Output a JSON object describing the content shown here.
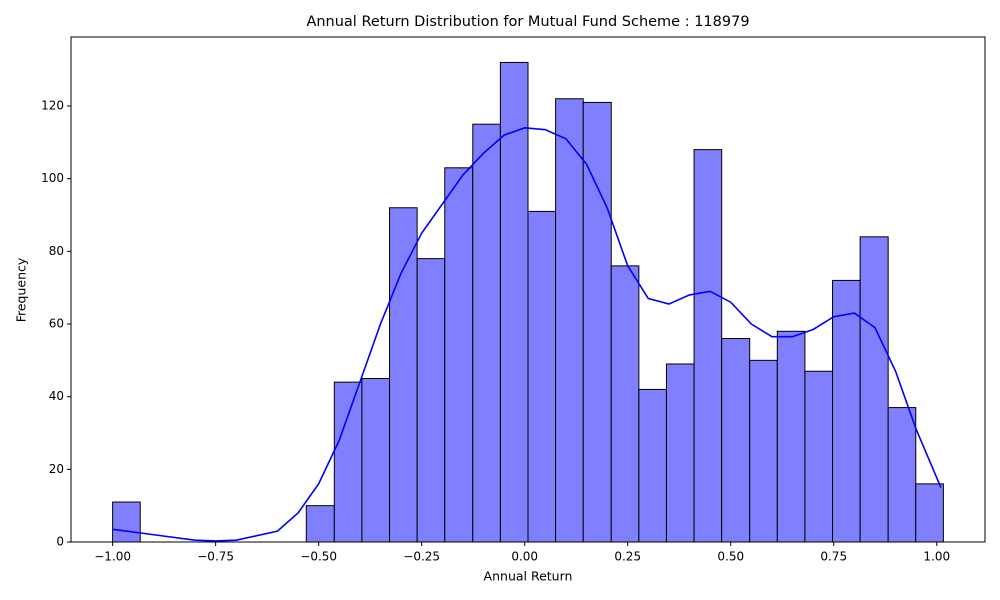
{
  "chart_data": {
    "type": "histogram",
    "title": "Annual Return Distribution for Mutual Fund Scheme : 118979",
    "x_label": "Annual Return",
    "y_label": "Frequency",
    "bins": [
      -1,
      -0.933,
      -0.866,
      -0.798,
      -0.731,
      -0.664,
      -0.597,
      -0.53,
      -0.462,
      -0.395,
      -0.328,
      -0.261,
      -0.194,
      -0.126,
      -0.059,
      0.008,
      0.075,
      0.142,
      0.21,
      0.277,
      0.344,
      0.411,
      0.478,
      0.546,
      0.613,
      0.68,
      0.747,
      0.814,
      0.882,
      0.949,
      1.016
    ],
    "values": [
      11,
      0,
      0,
      0,
      0,
      0,
      0,
      10,
      44,
      45,
      92,
      78,
      103,
      115,
      132,
      91,
      122,
      121,
      76,
      42,
      49,
      108,
      56,
      50,
      58,
      47,
      72,
      84,
      37,
      16
    ],
    "color": "#8080ff",
    "edgecolor": "#000000",
    "kde": {
      "color": "#0000ff",
      "x": [
        -1.0,
        -0.9,
        -0.8,
        -0.75,
        -0.7,
        -0.6,
        -0.55,
        -0.5,
        -0.45,
        -0.4,
        -0.35,
        -0.3,
        -0.25,
        -0.2,
        -0.15,
        -0.1,
        -0.05,
        0.0,
        0.05,
        0.1,
        0.15,
        0.2,
        0.25,
        0.3,
        0.35,
        0.4,
        0.45,
        0.5,
        0.55,
        0.6,
        0.65,
        0.7,
        0.75,
        0.8,
        0.85,
        0.9,
        0.95,
        1.01
      ],
      "values": [
        3.5,
        2,
        0.5,
        0.3,
        0.5,
        3,
        8,
        16,
        28,
        44,
        60,
        74,
        85,
        93,
        101,
        107,
        112,
        114,
        113.5,
        111,
        104,
        92,
        76,
        67,
        65.5,
        68,
        69,
        66,
        60,
        56.5,
        56.5,
        58.5,
        62,
        63,
        59,
        47,
        31,
        15
      ]
    },
    "xlim": [
      -1.101,
      1.117
    ],
    "ylim": [
      0,
      139
    ],
    "xticks": [
      {
        "value": -1,
        "label": "−1.00"
      },
      {
        "value": -0.75,
        "label": "−0.75"
      },
      {
        "value": -0.5,
        "label": "−0.50"
      },
      {
        "value": -0.25,
        "label": "−0.25"
      },
      {
        "value": 0,
        "label": "0.00"
      },
      {
        "value": 0.25,
        "label": "0.25"
      },
      {
        "value": 0.5,
        "label": "0.50"
      },
      {
        "value": 0.75,
        "label": "0.75"
      },
      {
        "value": 1,
        "label": "1.00"
      }
    ],
    "yticks": [
      0,
      20,
      40,
      60,
      80,
      100,
      120
    ]
  }
}
